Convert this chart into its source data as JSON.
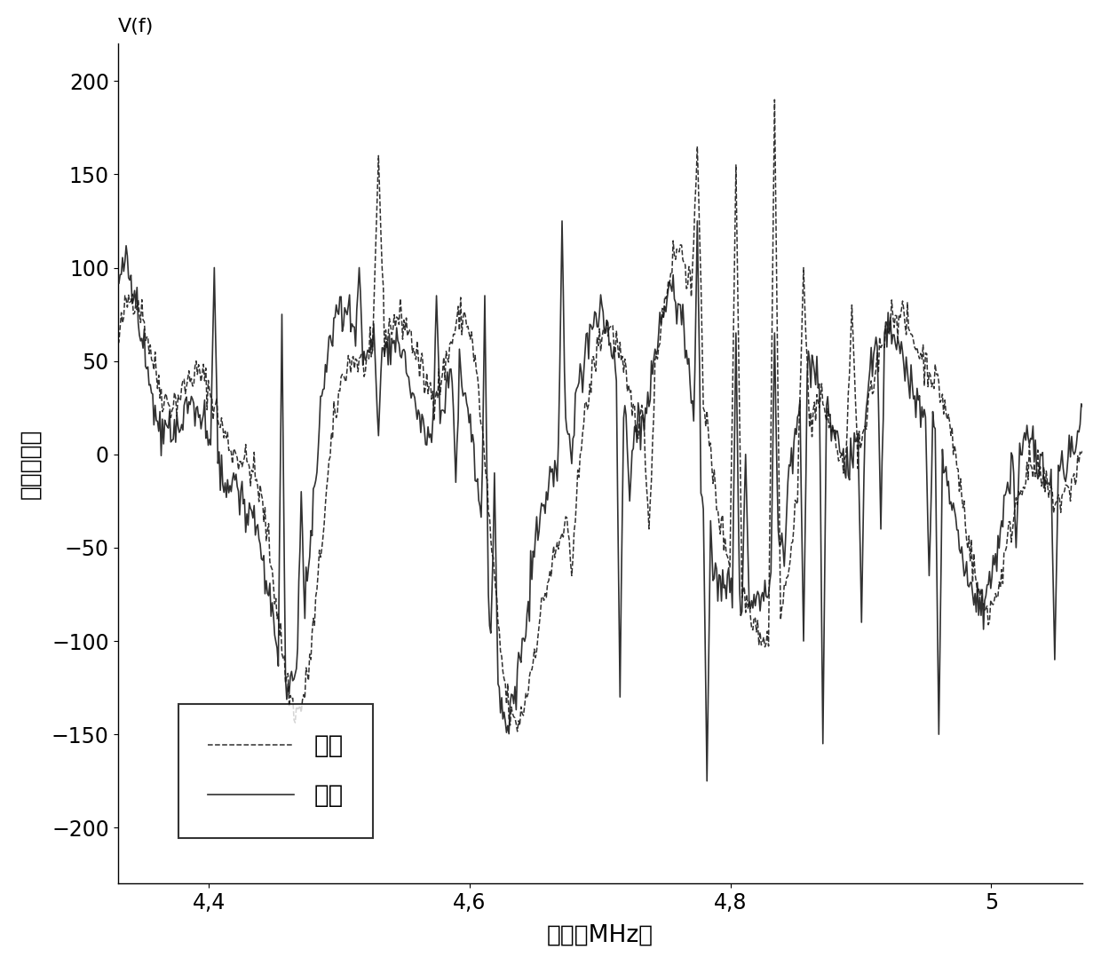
{
  "title": "",
  "xlabel": "频率（MHz）",
  "ylabel": "未滤波电压",
  "ylabel_top": "V(f)",
  "xlim": [
    4.33,
    5.07
  ],
  "ylim": [
    -230,
    220
  ],
  "yticks": [
    -200,
    -150,
    -100,
    -50,
    0,
    50,
    100,
    150,
    200
  ],
  "xticks": [
    4.4,
    4.6,
    4.8,
    5.0
  ],
  "xticklabels": [
    "4,4",
    "4,6",
    "4,8",
    "5"
  ],
  "legend_real": "实部",
  "legend_imag": "虚部",
  "line_color": "#1a1a1a",
  "background": "#ffffff",
  "seed": 42,
  "n_points": 800,
  "x_start": 4.33,
  "x_end": 5.07
}
